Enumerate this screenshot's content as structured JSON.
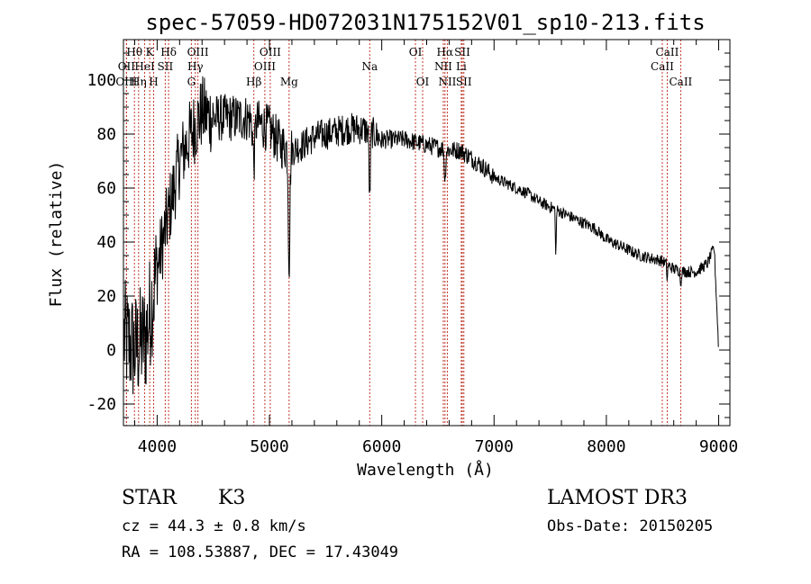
{
  "chart_data": {
    "type": "line",
    "title": "spec-57059-HD072031N175152V01_sp10-213.fits",
    "xlabel": "Wavelength (Å)",
    "ylabel": "Flux (relative)",
    "xlim": [
      3700,
      9100
    ],
    "ylim": [
      -28,
      115
    ],
    "xticks": [
      4000,
      5000,
      6000,
      7000,
      8000,
      9000
    ],
    "yticks": [
      -20,
      0,
      20,
      40,
      60,
      80,
      100
    ],
    "continuum": {
      "x": [
        3700,
        3800,
        3900,
        4000,
        4100,
        4200,
        4300,
        4400,
        4500,
        4600,
        4700,
        4800,
        4900,
        5000,
        5100,
        5200,
        5300,
        5400,
        5500,
        5600,
        5700,
        5800,
        5900,
        6000,
        6100,
        6200,
        6300,
        6400,
        6500,
        6600,
        6700,
        6800,
        6900,
        7000,
        7100,
        7200,
        7300,
        7400,
        7500,
        7600,
        7700,
        7800,
        7900,
        8000,
        8100,
        8200,
        8300,
        8400,
        8500,
        8600,
        8700,
        8800,
        8900,
        8960,
        9000
      ],
      "y": [
        5,
        0,
        5,
        30,
        50,
        70,
        80,
        88,
        86,
        86,
        86,
        86,
        84,
        82,
        76,
        74,
        76,
        79,
        80,
        81,
        82,
        82,
        81,
        78,
        78,
        78,
        77,
        76,
        75,
        74,
        74,
        71,
        68,
        64,
        62,
        60,
        58,
        55,
        53,
        51,
        49,
        47,
        45,
        41,
        39,
        37,
        35,
        34,
        33,
        30,
        29,
        29,
        32,
        38,
        0
      ]
    },
    "absorption": [
      {
        "center": 4861,
        "depth": 15,
        "width": 12
      },
      {
        "center": 5175,
        "depth": 42,
        "width": 10
      },
      {
        "center": 5893,
        "depth": 25,
        "width": 8
      },
      {
        "center": 6563,
        "depth": 12,
        "width": 8
      },
      {
        "center": 7550,
        "depth": 18,
        "width": 5
      },
      {
        "center": 8542,
        "depth": 6,
        "width": 5
      },
      {
        "center": 8662,
        "depth": 6,
        "width": 5
      }
    ],
    "spectral_lines": [
      {
        "label": "Hθ",
        "wavelength": 3798,
        "row": 1
      },
      {
        "label": "OII",
        "wavelength": 3727,
        "row": 2
      },
      {
        "label": "OIII",
        "wavelength": 3727,
        "row": 3
      },
      {
        "label": "Hη",
        "wavelength": 3835,
        "row": 3
      },
      {
        "label": "K",
        "wavelength": 3934,
        "row": 1
      },
      {
        "label": "HeI",
        "wavelength": 3889,
        "row": 2
      },
      {
        "label": "SII",
        "wavelength": 4072,
        "row": 2
      },
      {
        "label": "H",
        "wavelength": 3969,
        "row": 3
      },
      {
        "label": "Hδ",
        "wavelength": 4102,
        "row": 1
      },
      {
        "label": "OIII",
        "wavelength": 4363,
        "row": 1
      },
      {
        "label": "Hγ",
        "wavelength": 4340,
        "row": 2
      },
      {
        "label": "G",
        "wavelength": 4305,
        "row": 3
      },
      {
        "label": "OIII",
        "wavelength": 5007,
        "row": 1
      },
      {
        "label": "OIII",
        "wavelength": 4959,
        "row": 2
      },
      {
        "label": "Hβ",
        "wavelength": 4861,
        "row": 3
      },
      {
        "label": "Mg",
        "wavelength": 5175,
        "row": 3
      },
      {
        "label": "Na",
        "wavelength": 5893,
        "row": 2
      },
      {
        "label": "OI",
        "wavelength": 6300,
        "row": 1
      },
      {
        "label": "OI",
        "wavelength": 6364,
        "row": 3
      },
      {
        "label": "Hα",
        "wavelength": 6563,
        "row": 1
      },
      {
        "label": "SII",
        "wavelength": 6717,
        "row": 1
      },
      {
        "label": "NII",
        "wavelength": 6548,
        "row": 2
      },
      {
        "label": "Li",
        "wavelength": 6708,
        "row": 2
      },
      {
        "label": "NII",
        "wavelength": 6584,
        "row": 3
      },
      {
        "label": "SII",
        "wavelength": 6731,
        "row": 3
      },
      {
        "label": "CaII",
        "wavelength": 8542,
        "row": 1
      },
      {
        "label": "CaII",
        "wavelength": 8498,
        "row": 2
      },
      {
        "label": "CaII",
        "wavelength": 8662,
        "row": 3
      }
    ]
  },
  "info": {
    "class_label": "STAR",
    "subclass": "K3",
    "survey": "LAMOST DR3",
    "cz": "cz = 44.3 ± 0.8 km/s",
    "obs_date": "Obs-Date: 20150205",
    "radec": "RA = 108.53887, DEC =  17.43049"
  }
}
